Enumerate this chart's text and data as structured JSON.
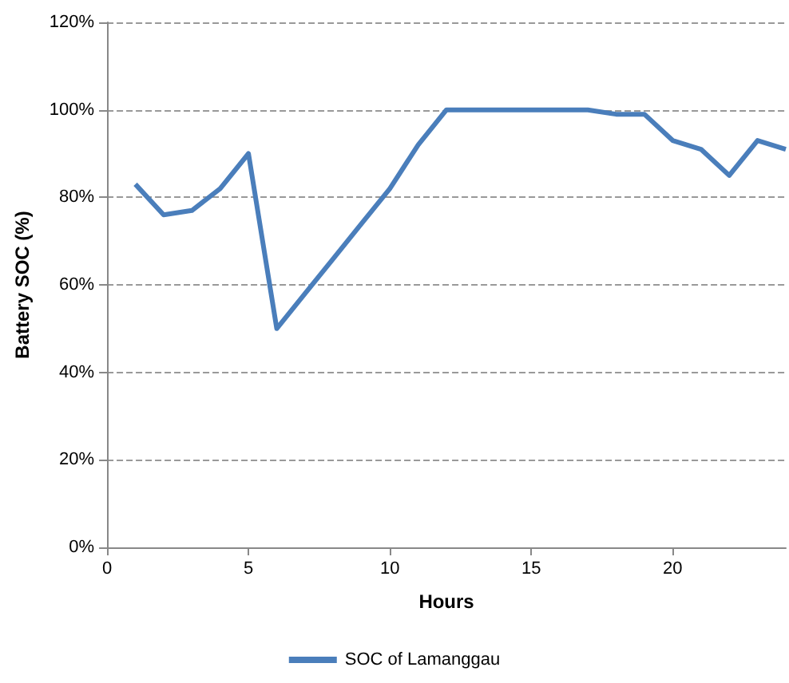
{
  "chart_data": {
    "type": "line",
    "xlabel": "Hours",
    "ylabel": "Battery SOC (%)",
    "x": [
      1,
      2,
      3,
      4,
      5,
      6,
      7,
      8,
      9,
      10,
      11,
      12,
      13,
      14,
      15,
      16,
      17,
      18,
      19,
      20,
      21,
      22,
      23,
      24
    ],
    "series": [
      {
        "name": "SOC of Lamanggau",
        "color": "#4a7ebb",
        "values": [
          83,
          76,
          77,
          82,
          90,
          50,
          58,
          66,
          74,
          82,
          92,
          100,
          100,
          100,
          100,
          100,
          100,
          99,
          99,
          93,
          91,
          85,
          93,
          91
        ]
      }
    ],
    "xlim": [
      0,
      24
    ],
    "xticks": [
      0,
      5,
      10,
      15,
      20
    ],
    "ylim": [
      0,
      120
    ],
    "yticks": [
      {
        "value": 0,
        "label": "0%"
      },
      {
        "value": 20,
        "label": "20%"
      },
      {
        "value": 40,
        "label": "40%"
      },
      {
        "value": 60,
        "label": "60%"
      },
      {
        "value": 80,
        "label": "80%"
      },
      {
        "value": 100,
        "label": "100%"
      },
      {
        "value": 120,
        "label": "120%"
      }
    ],
    "grid": "y",
    "legend": "bottom",
    "marker": "none",
    "line_style": "solid"
  }
}
